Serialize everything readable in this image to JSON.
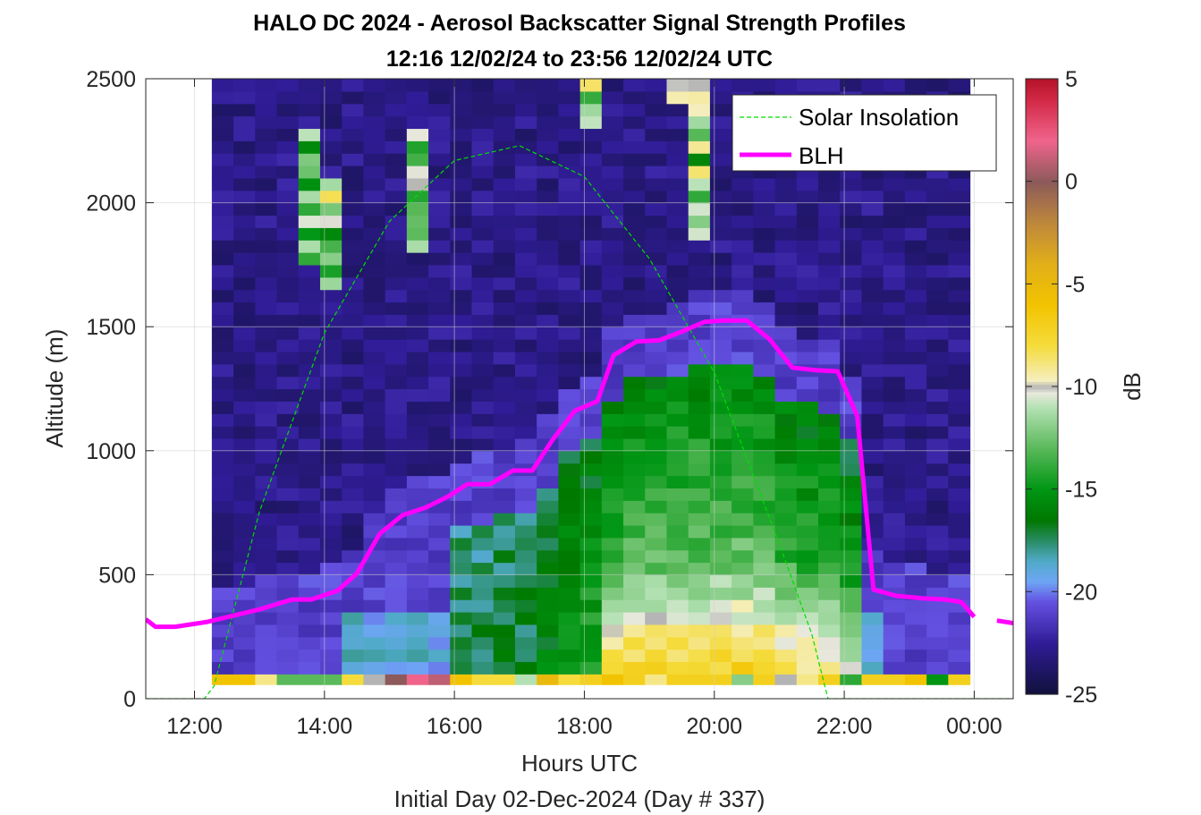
{
  "chart_data": {
    "type": "heatmap",
    "title": "HALO DC 2024 - Aerosol Backscatter Signal Strength Profiles",
    "subtitle": "12:16 12/02/24 to 23:56 12/02/24  UTC",
    "xlabel": "Hours UTC",
    "xlabel2": "Initial Day 02-Dec-2024 (Day # 337)",
    "ylabel": "Altitude (m)",
    "xlim": [
      11.25,
      24.6
    ],
    "ylim": [
      0,
      2500
    ],
    "x_ticks": [
      12,
      14,
      16,
      18,
      20,
      22,
      24
    ],
    "x_tick_labels": [
      "12:00",
      "14:00",
      "16:00",
      "18:00",
      "20:00",
      "22:00",
      "00:00"
    ],
    "y_ticks": [
      0,
      500,
      1000,
      1500,
      2000,
      2500
    ],
    "y_tick_labels": [
      "0",
      "500",
      "1000",
      "1500",
      "2000",
      "2500"
    ],
    "grid": true,
    "legend_position": "top-right",
    "colorbar": {
      "label": "dB",
      "range": [
        -25,
        5
      ],
      "ticks": [
        5,
        0,
        -5,
        -10,
        -15,
        -20,
        -25
      ],
      "tick_labels": [
        "5",
        "0",
        "-5",
        "-10",
        "-15",
        "-20",
        "-25"
      ]
    },
    "heatmap": {
      "time_start": 12.2667,
      "time_end": 23.9333,
      "altitude_min": 100,
      "altitude_max": 2500,
      "n_time_bins": 35,
      "n_alt_bins": 48,
      "surface_layer_db": [
        -6,
        -6,
        -9,
        -13,
        -13,
        -13,
        -8,
        -10,
        0,
        2,
        1,
        -6,
        -8,
        -8,
        -11,
        -5,
        -8,
        -7,
        -6,
        -7,
        -9,
        -7,
        -7,
        -7,
        -12,
        -7,
        -10,
        -9,
        -7,
        -14,
        -7,
        -7,
        -6,
        -15,
        -7
      ]
    },
    "series": [
      {
        "name": "Solar Insolation",
        "type": "dashed-line",
        "color": "#00dd00",
        "x": [
          11.25,
          12.15,
          12.3,
          13.0,
          14.0,
          15.0,
          16.0,
          17.0,
          18.0,
          19.0,
          20.0,
          21.0,
          21.5,
          21.75,
          22.0,
          24.6
        ],
        "y": [
          0,
          0,
          50,
          755,
          1475,
          1925,
          2170,
          2230,
          2105,
          1775,
          1315,
          625,
          260,
          0,
          0,
          0
        ]
      },
      {
        "name": "BLH",
        "type": "line",
        "color": "#ff00ff",
        "x": [
          11.25,
          11.4,
          11.7,
          12.2,
          13.0,
          13.5,
          13.8,
          14.2,
          14.5,
          14.85,
          15.2,
          15.55,
          15.9,
          16.2,
          16.55,
          16.9,
          17.2,
          17.5,
          17.85,
          18.2,
          18.45,
          18.8,
          19.15,
          19.5,
          19.85,
          20.15,
          20.5,
          20.85,
          21.2,
          21.55,
          21.9,
          22.2,
          22.45,
          22.8,
          23.2,
          23.55,
          23.8,
          24.0
        ],
        "y": [
          320,
          290,
          290,
          310,
          360,
          400,
          400,
          435,
          505,
          665,
          740,
          770,
          815,
          865,
          865,
          920,
          920,
          1040,
          1160,
          1200,
          1385,
          1440,
          1445,
          1480,
          1520,
          1525,
          1525,
          1450,
          1335,
          1325,
          1320,
          1140,
          440,
          415,
          405,
          400,
          390,
          330
        ],
        "x_end": [
          24.35,
          24.6
        ],
        "y_end": [
          315,
          305
        ]
      }
    ]
  }
}
